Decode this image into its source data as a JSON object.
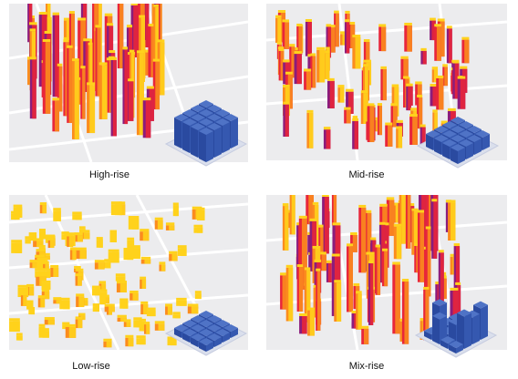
{
  "panels": [
    {
      "id": "high",
      "caption": "High-rise"
    },
    {
      "id": "mid",
      "caption": "Mid-rise"
    },
    {
      "id": "low",
      "caption": "Low-rise"
    },
    {
      "id": "mix",
      "caption": "Mix-rise"
    }
  ],
  "colors": {
    "map_background": "#ececee",
    "road": "#ffffff",
    "building_yellow": "#ffd21c",
    "building_orange": "#fb8c1e",
    "building_red": "#e8263a",
    "building_purple": "#8b1c7c",
    "block_top": "#4f73c6",
    "block_side": "#2a4aa0",
    "plate": "#dadfec"
  }
}
